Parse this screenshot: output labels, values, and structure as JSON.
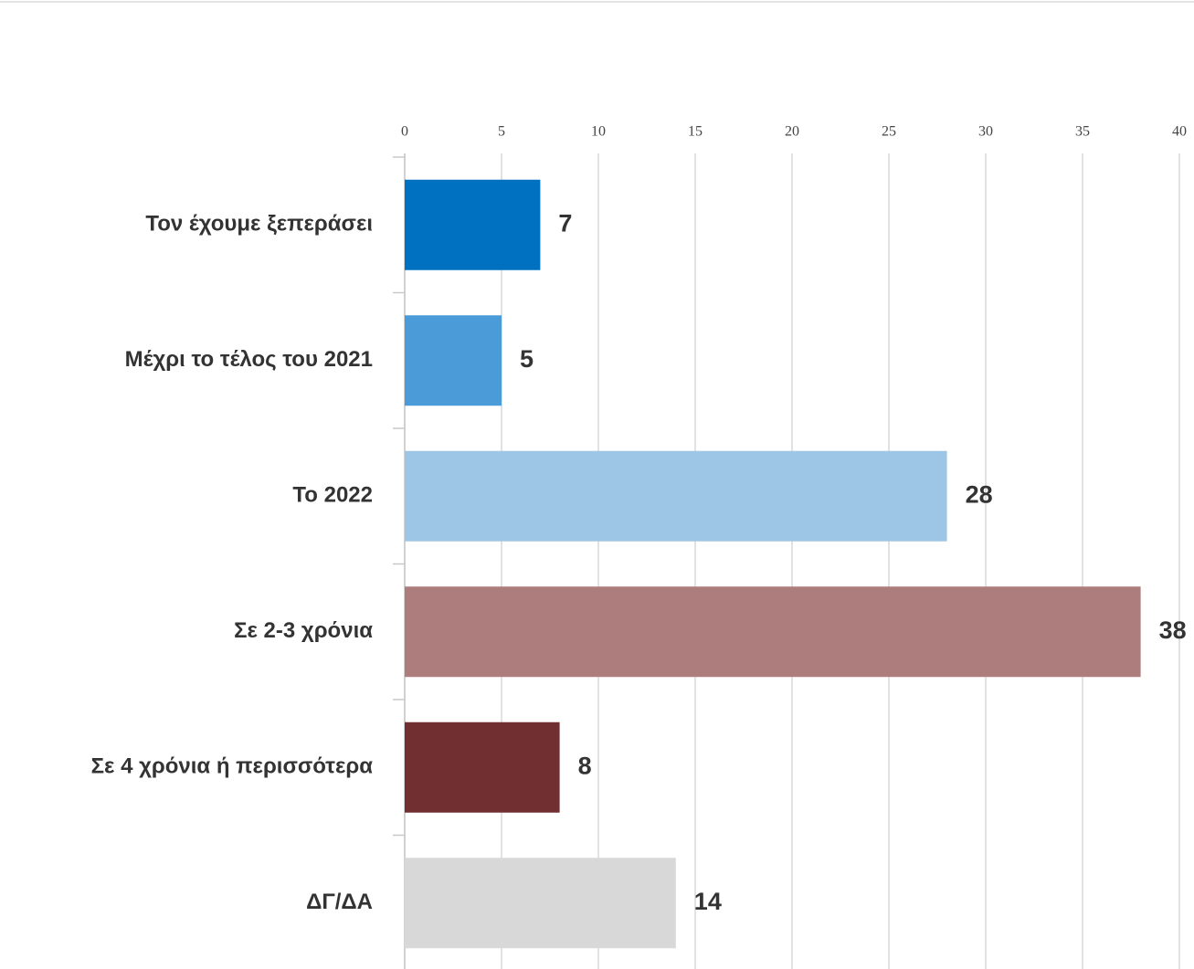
{
  "chart_data": {
    "type": "bar",
    "orientation": "horizontal",
    "categories": [
      "Τον έχουμε ξεπεράσει",
      "Μέχρι το τέλος του 2021",
      "Το 2022",
      "Σε 2-3 χρόνια",
      "Σε 4 χρόνια ή περισσότερα",
      "ΔΓ/ΔΑ"
    ],
    "values": [
      7,
      5,
      28,
      38,
      8,
      14
    ],
    "colors": [
      "#0070c0",
      "#4a9bd8",
      "#9dc6e6",
      "#ad7d7d",
      "#722f31",
      "#d8d8d8"
    ],
    "xlim": [
      0,
      40
    ],
    "xticks": [
      0,
      5,
      10,
      15,
      20,
      25,
      30,
      35,
      40
    ],
    "grid": true
  }
}
